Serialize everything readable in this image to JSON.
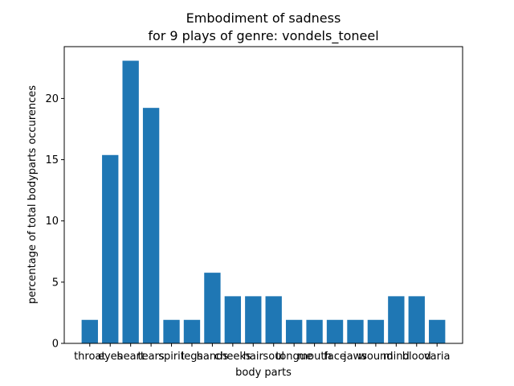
{
  "chart_data": {
    "type": "bar",
    "title": "Embodiment of sadness",
    "subtitle": "for 9 plays of genre: vondels_toneel",
    "xlabel": "body parts",
    "ylabel": "percentage of total bodyparts occurences",
    "categories": [
      "throat",
      "eyes",
      "heart",
      "tears",
      "spirit",
      "legs",
      "hands",
      "cheeks",
      "hair",
      "soul",
      "tongue",
      "mouth",
      "face",
      "jaws",
      "wound",
      "mind",
      "blood",
      "varia"
    ],
    "values": [
      1.92,
      15.38,
      23.08,
      19.23,
      1.92,
      1.92,
      5.77,
      3.85,
      3.85,
      3.85,
      1.92,
      1.92,
      1.92,
      1.92,
      1.92,
      3.85,
      3.85,
      1.92
    ],
    "ylim": [
      0,
      24.23
    ],
    "yticks": [
      0,
      5,
      10,
      15,
      20
    ],
    "bar_color": "#1f77b4",
    "grid": false,
    "legend": "none"
  }
}
